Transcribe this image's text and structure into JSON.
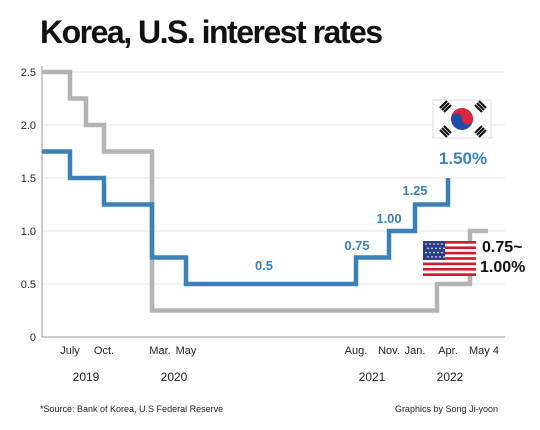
{
  "header": {
    "title": "Korea, U.S. interest rates"
  },
  "footer": {
    "source": "*Source: Bank of Korea, U.S Federal Reserve",
    "credit": "Graphics by Song Ji-yoon"
  },
  "colors": {
    "korea": "#3c80b8",
    "us": "#b3b3b3",
    "korea_label": "#3c80b8",
    "us_label": "#111111"
  },
  "chart_data": {
    "type": "line",
    "step": true,
    "title": "Korea, U.S. interest rates",
    "xlabel": "",
    "ylabel": "",
    "ylim": [
      0,
      2.5
    ],
    "yticks": [
      "0",
      "0.5",
      "1.0",
      "1.5",
      "2.0",
      "2.5"
    ],
    "grid": true,
    "x_ticks": [
      "July",
      "Oct.",
      "Mar.",
      "May",
      "Aug.",
      "Nov.",
      "Jan.",
      "Apr.",
      "May 4"
    ],
    "x_years": [
      "2019",
      "2020",
      "2021",
      "2022"
    ],
    "series": [
      {
        "name": "Korea",
        "color": "#3c80b8",
        "points": [
          [
            "2019-04",
            1.75
          ],
          [
            "2019-07",
            1.5
          ],
          [
            "2019-10",
            1.25
          ],
          [
            "2020-03",
            0.75
          ],
          [
            "2020-05",
            0.5
          ],
          [
            "2021-08",
            0.75
          ],
          [
            "2021-11",
            1.0
          ],
          [
            "2022-01",
            1.25
          ],
          [
            "2022-04",
            1.5
          ]
        ]
      },
      {
        "name": "U.S.",
        "color": "#b3b3b3",
        "points": [
          [
            "2019-04",
            2.5
          ],
          [
            "2019-07",
            2.25
          ],
          [
            "2019-09",
            2.0
          ],
          [
            "2019-10",
            1.75
          ],
          [
            "2020-03",
            0.25
          ],
          [
            "2022-03",
            0.5
          ],
          [
            "2022-05",
            1.0
          ]
        ]
      }
    ],
    "annotations": [
      {
        "text": "0.5",
        "series": "Korea"
      },
      {
        "text": "0.75",
        "series": "Korea"
      },
      {
        "text": "1.00",
        "series": "Korea"
      },
      {
        "text": "1.25",
        "series": "Korea"
      },
      {
        "text": "1.50%",
        "series": "Korea"
      },
      {
        "text": "0.75~",
        "series": "U.S."
      },
      {
        "text": "1.00%",
        "series": "U.S."
      }
    ]
  }
}
